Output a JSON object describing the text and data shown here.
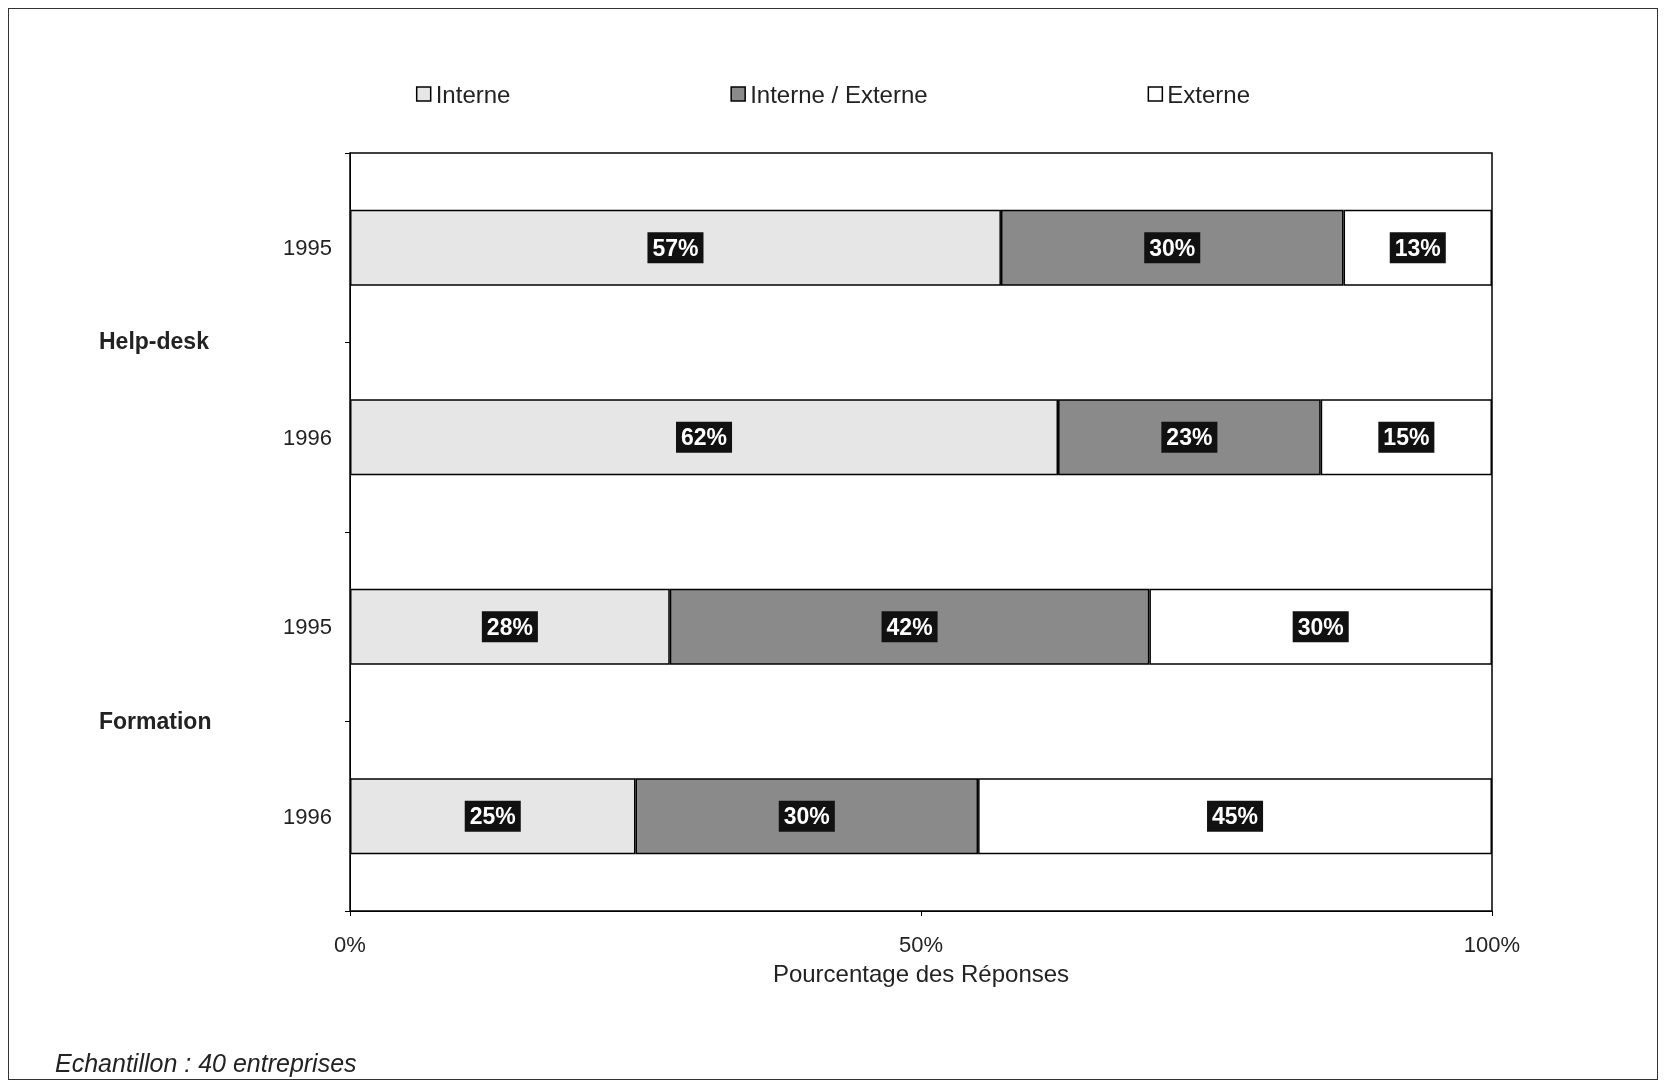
{
  "chart_data": {
    "type": "bar",
    "orientation": "horizontal",
    "stacked": true,
    "categories": [
      "1995",
      "1996",
      "1995",
      "1996"
    ],
    "series": [
      {
        "name": "Interne",
        "color": "#e6e6e6",
        "values": [
          57,
          62,
          28,
          25
        ],
        "value_labels": [
          "57%",
          "62%",
          "28%",
          "25%"
        ]
      },
      {
        "name": "Interne / Externe",
        "color": "#8a8a8a",
        "values": [
          30,
          23,
          42,
          30
        ],
        "value_labels": [
          "30%",
          "23%",
          "42%",
          "30%"
        ]
      },
      {
        "name": "Externe",
        "color": "#ffffff",
        "values": [
          13,
          15,
          30,
          45
        ],
        "value_labels": [
          "13%",
          "15%",
          "30%",
          "45%"
        ]
      }
    ],
    "xlabel": "Pourcentage des Réponses",
    "xlim": [
      0,
      100
    ],
    "xticks": [
      {
        "value": 0,
        "label": "0%"
      },
      {
        "value": 50,
        "label": "50%"
      },
      {
        "value": 100,
        "label": "100%"
      }
    ],
    "grid": false,
    "legend": "top",
    "annotations": [
      "Help-desk",
      "Formation",
      "Echantillon : 40 entreprises"
    ]
  }
}
